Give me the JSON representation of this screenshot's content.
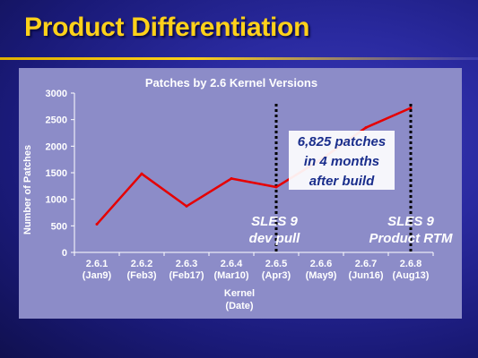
{
  "slide": {
    "title": "Product Differentiation"
  },
  "chart_data": {
    "type": "line",
    "title": "Patches by 2.6 Kernel Versions",
    "ylabel": "Number of Patches",
    "xlabel_lines": [
      "Kernel",
      "(Date)"
    ],
    "ylim": [
      0,
      3000
    ],
    "yticks": [
      0,
      500,
      1000,
      1500,
      2000,
      2500,
      3000
    ],
    "grid": false,
    "categories": [
      "2.6.1",
      "2.6.2",
      "2.6.3",
      "2.6.4",
      "2.6.5",
      "2.6.6",
      "2.6.7",
      "2.6.8"
    ],
    "category_dates": [
      "(Jan9)",
      "(Feb3)",
      "(Feb17)",
      "(Mar10)",
      "(Apr3)",
      "(May9)",
      "(Jun16)",
      "(Aug13)"
    ],
    "series": [
      {
        "values": [
          530,
          1480,
          870,
          1390,
          1230,
          1750,
          2350,
          2720
        ],
        "color": "#e60000"
      }
    ],
    "markers": [
      {
        "at_category": "2.6.5",
        "label_lines": [
          "SLES 9",
          "dev pull"
        ]
      },
      {
        "at_category": "2.6.8",
        "label_lines": [
          "SLES 9",
          "Product RTM"
        ]
      }
    ],
    "callout": {
      "lines": [
        "6,825 patches",
        "in 4 months",
        "after build"
      ]
    }
  }
}
